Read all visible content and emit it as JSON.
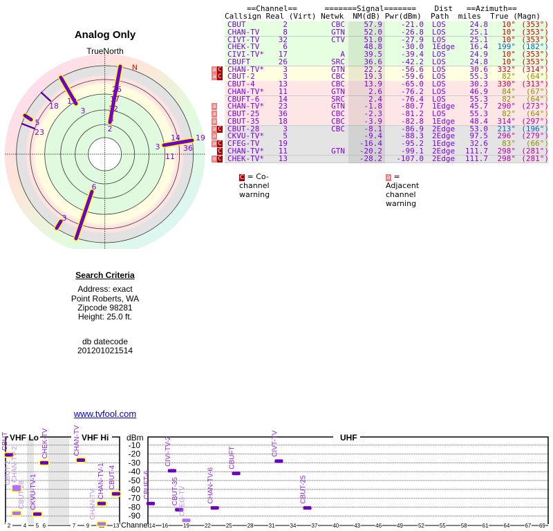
{
  "left": {
    "title": "Analog Only",
    "true_north": "TrueNorth",
    "north": "N",
    "radar_labels": [
      "26",
      "17",
      "32",
      "8",
      "2",
      "13",
      "3",
      "18",
      "5",
      "23",
      "3",
      "11",
      "14",
      "36",
      "19",
      "6",
      "3"
    ],
    "criteria_title": "Search Criteria",
    "address": "Address: exact",
    "city": "Point Roberts, WA",
    "zip": "Zipcode 98281",
    "height": "Height: 25.0 ft.",
    "db_label": "db datecode",
    "db_value": "201201021514",
    "link": "www.tvfool.com"
  },
  "table": {
    "header1": "==Channel==      =======Signal=======    Dist   ==Azimuth==",
    "header2": "Callsign Real (Virt) Netwk  NM(dB) Pwr(dBm)  Path  miles  True (Magn)",
    "colors": {
      "green": "#e6ffe0",
      "yellow": "#fffee0",
      "pink": "#ffe6e6",
      "gray": "#e4e4e4"
    },
    "rows": [
      {
        "call": "CBUT",
        "real": "2",
        "net": "CBC",
        "nm": "57.9",
        "pwr": "-21.0",
        "path": "LOS",
        "dist": "24.8",
        "true": "10°",
        "magn": "(353°)",
        "az": "#d00000",
        "bg": "green",
        "w": ""
      },
      {
        "call": "CHAN-TV",
        "real": "8",
        "net": "GTN",
        "nm": "52.0",
        "pwr": "-26.8",
        "path": "LOS",
        "dist": "25.1",
        "true": "10°",
        "magn": "(353°)",
        "az": "#d00000",
        "bg": "green",
        "w": ""
      },
      {
        "call": "CIVT-TV",
        "real": "32",
        "net": "CTV",
        "nm": "51.0",
        "pwr": "-27.9",
        "path": "LOS",
        "dist": "25.1",
        "true": "10°",
        "magn": "(353°)",
        "az": "#d00000",
        "bg": "green",
        "w": ""
      },
      {
        "call": "CHEK-TV",
        "real": "6",
        "net": "",
        "nm": "48.8",
        "pwr": "-30.0",
        "path": "1Edge",
        "dist": "16.4",
        "true": "199°",
        "magn": "(182°)",
        "az": "#1060c0",
        "bg": "green",
        "w": ""
      },
      {
        "call": "CIVI-TV*",
        "real": "17",
        "net": "A",
        "nm": "39.5",
        "pwr": "-39.4",
        "path": "LOS",
        "dist": "24.9",
        "true": "10°",
        "magn": "(353°)",
        "az": "#d00000",
        "bg": "green",
        "w": ""
      },
      {
        "call": "CBUFT",
        "real": "26",
        "net": "SRC",
        "nm": "36.6",
        "pwr": "-42.2",
        "path": "LOS",
        "dist": "24.8",
        "true": "10°",
        "magn": "(353°)",
        "az": "#d00000",
        "bg": "green",
        "w": ""
      },
      {
        "call": "CHAN-TV*",
        "real": "3",
        "net": "GTN",
        "nm": "22.2",
        "pwr": "-56.6",
        "path": "LOS",
        "dist": "30.6",
        "true": "332°",
        "magn": "(314°)",
        "az": "#d00040",
        "bg": "yellow",
        "w": "aC"
      },
      {
        "call": "CBUT-2",
        "real": "3",
        "net": "CBC",
        "nm": "19.3",
        "pwr": "-59.6",
        "path": "LOS",
        "dist": "55.3",
        "true": "82°",
        "magn": "(64°)",
        "az": "#909000",
        "bg": "yellow",
        "w": "aC"
      },
      {
        "call": "CBUT-4",
        "real": "13",
        "net": "CBC",
        "nm": "13.9",
        "pwr": "-65.0",
        "path": "LOS",
        "dist": "30.3",
        "true": "330°",
        "magn": "(313°)",
        "az": "#d00040",
        "bg": "pink",
        "w": ""
      },
      {
        "call": "CHAN-TV*",
        "real": "11",
        "net": "GTN",
        "nm": "2.6",
        "pwr": "-76.2",
        "path": "LOS",
        "dist": "46.9",
        "true": "84°",
        "magn": "(67°)",
        "az": "#909000",
        "bg": "pink",
        "w": ""
      },
      {
        "call": "CBUFT-6",
        "real": "14",
        "net": "SRC",
        "nm": "2.4",
        "pwr": "-76.4",
        "path": "LOS",
        "dist": "55.3",
        "true": "82°",
        "magn": "(64°)",
        "az": "#909000",
        "bg": "pink",
        "w": ""
      },
      {
        "call": "CHAN-TV*",
        "real": "23",
        "net": "GTN",
        "nm": "-1.8",
        "pwr": "-80.7",
        "path": "1Edge",
        "dist": "45.7",
        "true": "290°",
        "magn": "(273°)",
        "az": "#c000a0",
        "bg": "pink",
        "w": "a"
      },
      {
        "call": "CBUT-25",
        "real": "36",
        "net": "CBC",
        "nm": "-2.3",
        "pwr": "-81.2",
        "path": "LOS",
        "dist": "55.3",
        "true": "82°",
        "magn": "(64°)",
        "az": "#909000",
        "bg": "pink",
        "w": "a"
      },
      {
        "call": "CBUT-35",
        "real": "18",
        "net": "CBC",
        "nm": "-3.9",
        "pwr": "-82.8",
        "path": "1Edge",
        "dist": "48.4",
        "true": "314°",
        "magn": "(297°)",
        "az": "#c000a0",
        "bg": "pink",
        "w": "a"
      },
      {
        "call": "CBUT-28",
        "real": "3",
        "net": "CBC",
        "nm": "-8.1",
        "pwr": "-86.9",
        "path": "2Edge",
        "dist": "53.0",
        "true": "213°",
        "magn": "(196°)",
        "az": "#1060c0",
        "bg": "gray",
        "w": "aC"
      },
      {
        "call": "CKVU-TV*",
        "real": "5",
        "net": "",
        "nm": "-9.4",
        "pwr": "-88.3",
        "path": "2Edge",
        "dist": "97.5",
        "true": "296°",
        "magn": "(279°)",
        "az": "#c000a0",
        "bg": "gray",
        "w": "a"
      },
      {
        "call": "CFEG-TV",
        "real": "19",
        "net": "",
        "nm": "-16.4",
        "pwr": "-95.2",
        "path": "1Edge",
        "dist": "32.6",
        "true": "83°",
        "magn": "(66°)",
        "az": "#909000",
        "bg": "gray",
        "w": "aC"
      },
      {
        "call": "CHAN-TV*",
        "real": "11",
        "net": "GTN",
        "nm": "-20.2",
        "pwr": "-99.1",
        "path": "2Edge",
        "dist": "111.7",
        "true": "298°",
        "magn": "(281°)",
        "az": "#c000a0",
        "bg": "gray",
        "w": "C"
      },
      {
        "call": "CHEK-TV*",
        "real": "13",
        "net": "",
        "nm": "-28.2",
        "pwr": "-107.0",
        "path": "2Edge",
        "dist": "111.7",
        "true": "298°",
        "magn": "(281°)",
        "az": "#c000a0",
        "bg": "gray",
        "w": "aC"
      }
    ],
    "legend_c_icon": "C",
    "legend_c": "= Co-channel warning",
    "legend_a_icon": "a",
    "legend_a": "= Adjacent channel warning"
  },
  "spectrum": {
    "vhf_lo": "VHF Lo",
    "vhf_hi": "VHF Hi",
    "uhf": "UHF",
    "dbm": "dBm",
    "channel": "Channel",
    "dbm_ticks": [
      "-10",
      "-20",
      "-30",
      "-40",
      "-50",
      "-60",
      "-70",
      "-80",
      "-90"
    ],
    "vhf_ticks": [
      "2",
      "4",
      "5",
      "6",
      "7",
      "9",
      "11",
      "13"
    ],
    "uhf_ticks": [
      "14",
      "16",
      "19",
      "22",
      "25",
      "28",
      "31",
      "34",
      "37",
      "40",
      "43",
      "46",
      "49",
      "52",
      "55",
      "58",
      "61",
      "64",
      "67",
      "69"
    ],
    "markers": [
      {
        "label": "CBUT",
        "ch": 2,
        "dbm": -21,
        "hl": true,
        "faded": false
      },
      {
        "label": "CHEK-TV",
        "ch": 6,
        "dbm": -30,
        "hl": true,
        "faded": false
      },
      {
        "label": "CHAN-TV",
        "ch": 8,
        "dbm": -27,
        "hl": true,
        "faded": false
      },
      {
        "label": "CKVU-TV-1",
        "ch": 5,
        "dbm": -88,
        "hl": true,
        "faded": false
      },
      {
        "label": "CBUT-4",
        "ch": 13,
        "dbm": -65,
        "hl": true,
        "faded": false
      },
      {
        "label": "CHAN-TV-1",
        "ch": 11,
        "dbm": -76,
        "hl": true,
        "faded": false
      },
      {
        "label": "CHAN-TV",
        "ch": 11,
        "dbm": -99,
        "hl": true,
        "faded": true
      },
      {
        "label": "CBUT-2",
        "ch": 3,
        "dbm": -60,
        "hl": true,
        "faded": true
      },
      {
        "label": "CHAN-TV-2",
        "ch": 3,
        "dbm": -57,
        "hl": false,
        "faded": true
      },
      {
        "label": "CBUT-28",
        "ch": 3,
        "dbm": -87,
        "hl": true,
        "faded": true
      },
      {
        "label": "CBUFT-6",
        "ch": 14,
        "dbm": -76,
        "hl": false,
        "faded": false
      },
      {
        "label": "CIVI-TV-2",
        "ch": 17,
        "dbm": -39,
        "hl": false,
        "faded": false
      },
      {
        "label": "CBUT-35",
        "ch": 18,
        "dbm": -83,
        "hl": false,
        "faded": false
      },
      {
        "label": "CFEG-TV",
        "ch": 19,
        "dbm": -95,
        "hl": false,
        "faded": true
      },
      {
        "label": "CHAN-TV-6",
        "ch": 23,
        "dbm": -81,
        "hl": false,
        "faded": false
      },
      {
        "label": "CBUFT",
        "ch": 26,
        "dbm": -42,
        "hl": false,
        "faded": false
      },
      {
        "label": "CIVT-TV",
        "ch": 32,
        "dbm": -28,
        "hl": false,
        "faded": false
      },
      {
        "label": "CBUT-25",
        "ch": 36,
        "dbm": -81,
        "hl": false,
        "faded": false
      }
    ]
  }
}
